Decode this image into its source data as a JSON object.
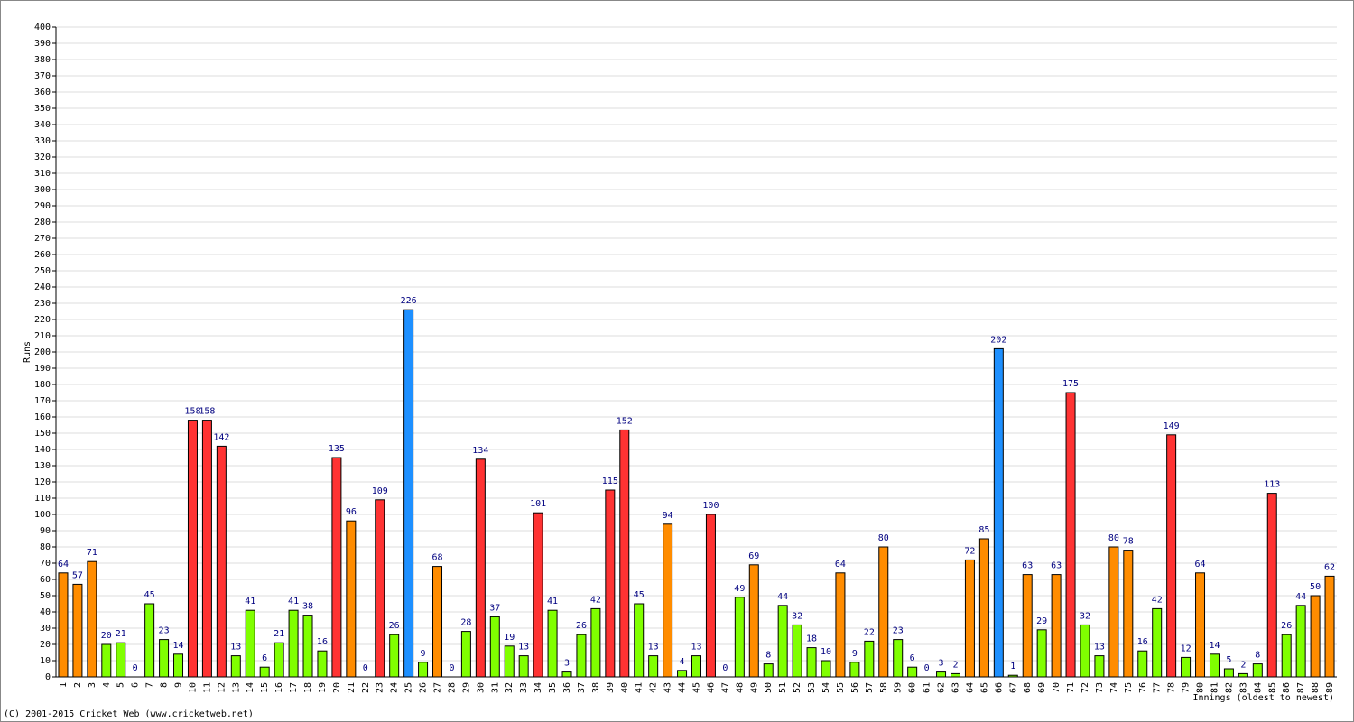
{
  "chart_data": {
    "type": "bar",
    "ylabel": "Runs",
    "xlabel": "Innings (oldest to newest)",
    "categories": [
      "1",
      "2",
      "3",
      "4",
      "5",
      "6",
      "7",
      "8",
      "9",
      "10",
      "11",
      "12",
      "13",
      "14",
      "15",
      "16",
      "17",
      "18",
      "19",
      "20",
      "21",
      "22",
      "23",
      "24",
      "25",
      "26",
      "27",
      "28",
      "29",
      "30",
      "31",
      "32",
      "33",
      "34",
      "35",
      "36",
      "37",
      "38",
      "39",
      "40",
      "41",
      "42",
      "43",
      "44",
      "45",
      "46",
      "47",
      "48",
      "49",
      "50",
      "51",
      "52",
      "53",
      "54",
      "55",
      "56",
      "57",
      "58",
      "59",
      "60",
      "61",
      "62",
      "63",
      "64",
      "65",
      "66",
      "67",
      "68",
      "69",
      "70",
      "71",
      "72",
      "73",
      "74",
      "75",
      "76",
      "77",
      "78",
      "79",
      "80",
      "81",
      "82",
      "83",
      "84",
      "85",
      "86",
      "87",
      "88",
      "89"
    ],
    "values": [
      64,
      57,
      71,
      20,
      21,
      0,
      45,
      23,
      14,
      158,
      158,
      142,
      13,
      41,
      6,
      21,
      41,
      38,
      16,
      135,
      96,
      0,
      109,
      26,
      226,
      9,
      68,
      0,
      28,
      134,
      37,
      19,
      13,
      101,
      41,
      3,
      26,
      42,
      115,
      152,
      45,
      13,
      94,
      4,
      13,
      100,
      0,
      49,
      69,
      8,
      44,
      32,
      18,
      10,
      64,
      9,
      22,
      80,
      23,
      6,
      0,
      3,
      2,
      72,
      85,
      202,
      1,
      63,
      29,
      63,
      175,
      32,
      13,
      80,
      78,
      16,
      42,
      149,
      12,
      64,
      14,
      5,
      2,
      8,
      113,
      26,
      44,
      50,
      62
    ],
    "colors": [
      "#ff8c00",
      "#ff8c00",
      "#ff8c00",
      "#80ff00",
      "#80ff00",
      "#80ff00",
      "#80ff00",
      "#80ff00",
      "#80ff00",
      "#ff3333",
      "#ff3333",
      "#ff3333",
      "#80ff00",
      "#80ff00",
      "#80ff00",
      "#80ff00",
      "#80ff00",
      "#80ff00",
      "#80ff00",
      "#ff3333",
      "#ff8c00",
      "#80ff00",
      "#ff3333",
      "#80ff00",
      "#1e90ff",
      "#80ff00",
      "#ff8c00",
      "#80ff00",
      "#80ff00",
      "#ff3333",
      "#80ff00",
      "#80ff00",
      "#80ff00",
      "#ff3333",
      "#80ff00",
      "#80ff00",
      "#80ff00",
      "#80ff00",
      "#ff3333",
      "#ff3333",
      "#80ff00",
      "#80ff00",
      "#ff8c00",
      "#80ff00",
      "#80ff00",
      "#ff3333",
      "#80ff00",
      "#80ff00",
      "#ff8c00",
      "#80ff00",
      "#80ff00",
      "#80ff00",
      "#80ff00",
      "#80ff00",
      "#ff8c00",
      "#80ff00",
      "#80ff00",
      "#ff8c00",
      "#80ff00",
      "#80ff00",
      "#80ff00",
      "#80ff00",
      "#80ff00",
      "#ff8c00",
      "#ff8c00",
      "#1e90ff",
      "#80ff00",
      "#ff8c00",
      "#80ff00",
      "#ff8c00",
      "#ff3333",
      "#80ff00",
      "#80ff00",
      "#ff8c00",
      "#ff8c00",
      "#80ff00",
      "#80ff00",
      "#ff3333",
      "#80ff00",
      "#ff8c00",
      "#80ff00",
      "#80ff00",
      "#80ff00",
      "#80ff00",
      "#ff3333",
      "#80ff00",
      "#80ff00",
      "#ff8c00",
      "#ff8c00"
    ],
    "ylim": [
      0,
      400
    ],
    "yticks": [
      0,
      10,
      20,
      30,
      40,
      50,
      60,
      70,
      80,
      90,
      100,
      110,
      120,
      130,
      140,
      150,
      160,
      170,
      180,
      190,
      200,
      210,
      220,
      230,
      240,
      250,
      260,
      270,
      280,
      290,
      300,
      310,
      320,
      330,
      340,
      350,
      360,
      370,
      380,
      390,
      400
    ],
    "grid": true
  },
  "footer": {
    "text": "(C) 2001-2015 Cricket Web (www.cricketweb.net)"
  }
}
